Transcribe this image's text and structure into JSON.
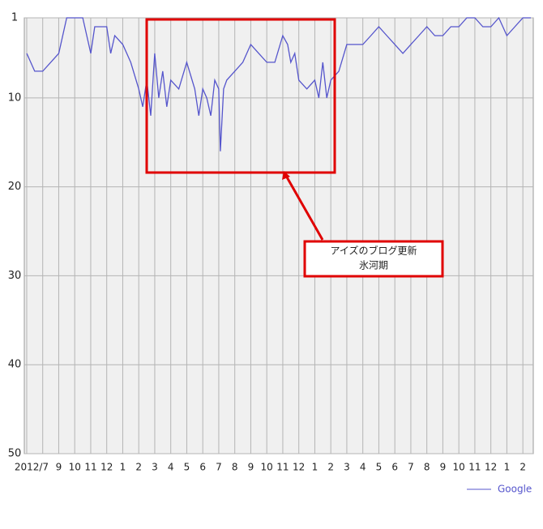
{
  "chart_data": {
    "type": "line",
    "x": [
      0,
      0.5,
      1,
      1.5,
      2,
      2.5,
      3,
      3.5,
      4,
      4.25,
      4.5,
      5,
      5.25,
      5.5,
      6,
      6.5,
      7,
      7.25,
      7.5,
      7.75,
      8,
      8.25,
      8.5,
      8.75,
      9,
      9.5,
      10,
      10.5,
      10.75,
      11,
      11.25,
      11.5,
      11.75,
      12,
      12.1,
      12.3,
      12.5,
      13,
      13.5,
      14,
      14.5,
      15,
      15.5,
      16,
      16.3,
      16.5,
      16.75,
      17,
      17.5,
      18,
      18.25,
      18.5,
      18.75,
      19,
      19.5,
      20,
      20.5,
      21,
      21.5,
      22,
      22.5,
      23,
      23.5,
      24,
      24.5,
      25,
      25.5,
      26,
      26.5,
      27,
      27.5,
      28,
      28.5,
      29,
      29.5,
      30,
      30.5,
      31,
      31.5
    ],
    "series": [
      {
        "name": "Google",
        "color": "#5555cc",
        "values": [
          5,
          7,
          7,
          6,
          5,
          1,
          1,
          1,
          5,
          2,
          2,
          2,
          5,
          3,
          4,
          6,
          9,
          11,
          8,
          12,
          5,
          10,
          7,
          11,
          8,
          9,
          6,
          9,
          12,
          9,
          10,
          12,
          8,
          9,
          16,
          9,
          8,
          7,
          6,
          4,
          5,
          6,
          6,
          3,
          4,
          6,
          5,
          8,
          9,
          8,
          10,
          6,
          10,
          8,
          7,
          4,
          4,
          4,
          3,
          2,
          3,
          4,
          5,
          4,
          3,
          2,
          3,
          3,
          2,
          2,
          1,
          1,
          2,
          2,
          1,
          3,
          2,
          1,
          1
        ]
      }
    ],
    "xlim": [
      -0.15,
      31.65
    ],
    "xticks": [
      {
        "value": 0,
        "label": "2012/7"
      },
      {
        "value": 1,
        "label": null
      },
      2,
      3,
      4,
      5,
      6,
      7,
      8,
      9,
      10,
      11,
      12,
      13,
      14,
      15,
      16,
      17,
      18,
      19,
      20,
      21,
      22,
      23,
      24,
      25,
      26,
      27,
      28,
      29,
      30,
      31
    ],
    "xtick_labels_text": [
      "2012/7",
      null,
      "9",
      "10",
      "11",
      "12",
      "1",
      "2",
      "3",
      "4",
      "5",
      "6",
      "7",
      "8",
      "9",
      "10",
      "11",
      "12",
      "1",
      "2",
      "3",
      "4",
      "5",
      "6",
      "7",
      "8",
      "9",
      "10",
      "11",
      "12",
      "1",
      "2"
    ],
    "ylim": [
      1,
      50
    ],
    "yticks": [
      1,
      10,
      20,
      30,
      40,
      50
    ],
    "y_inverted": true,
    "grid": true,
    "legend": "bottom-right",
    "annotation": [
      "アイズのブログ更新",
      "氷河期"
    ]
  }
}
